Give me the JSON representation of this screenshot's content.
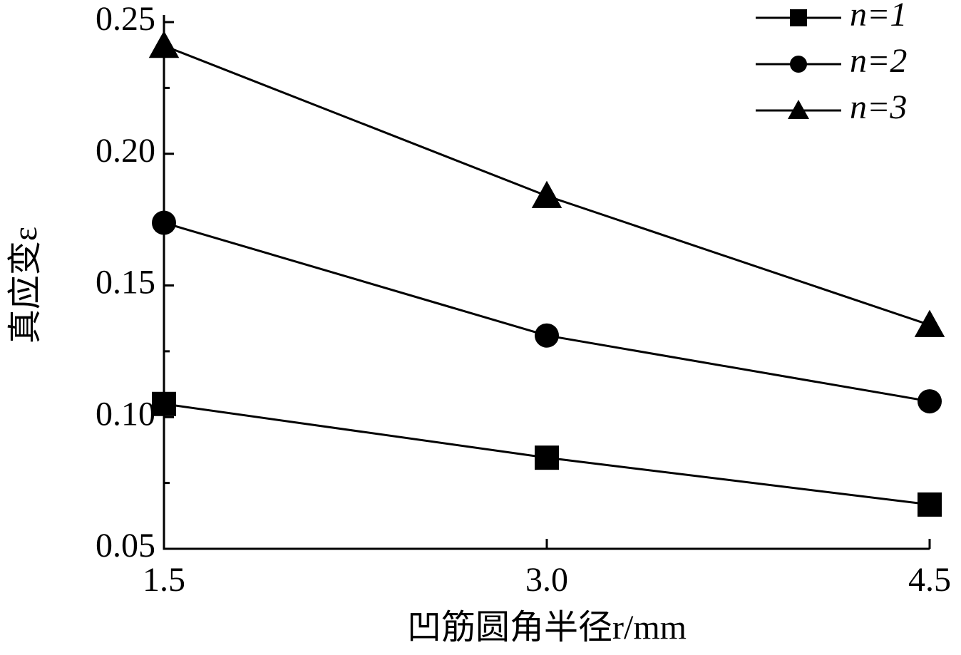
{
  "chart_data": {
    "type": "line",
    "x_label": "凹筋圆角半径r/mm",
    "y_label": "真应变ε",
    "x": [
      1.5,
      3.0,
      4.5
    ],
    "series": [
      {
        "name": "n=1",
        "color": "#000000",
        "marker": "square",
        "values": [
          0.105,
          0.0846,
          0.0668
        ]
      },
      {
        "name": "n=2",
        "color": "#000000",
        "marker": "circle",
        "values": [
          0.1738,
          0.131,
          0.106
        ]
      },
      {
        "name": "n=3",
        "color": "#000000",
        "marker": "triangle",
        "values": [
          0.241,
          0.184,
          0.135
        ]
      }
    ],
    "xlim": [
      1.5,
      4.5
    ],
    "xticks": [
      1.5,
      {
        "value": 3.0,
        "label": "3.0"
      },
      4.5
    ],
    "ylim": [
      0.05,
      0.25
    ],
    "yticks": [
      0.05,
      {
        "value": 0.1,
        "label": "0.10"
      },
      0.15,
      {
        "value": 0.2,
        "label": "0.20"
      },
      0.25
    ],
    "grid": false,
    "legend": "upper right"
  }
}
